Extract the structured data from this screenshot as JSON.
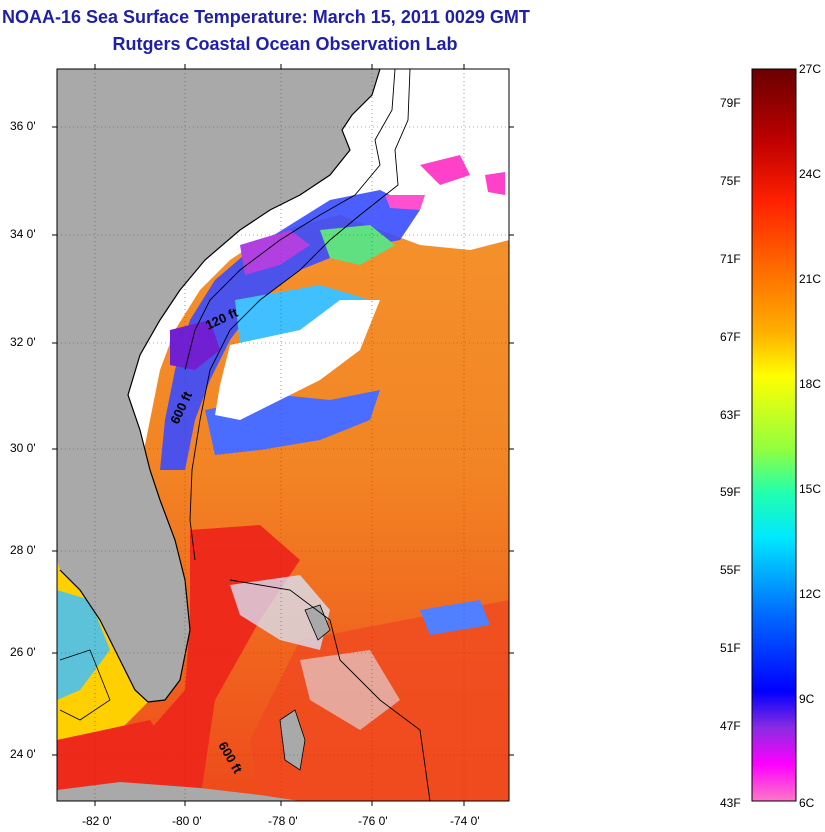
{
  "title": {
    "line1": "NOAA-16 Sea Surface Temperature:  March 15, 2011 0029 GMT",
    "line2": "Rutgers Coastal Ocean Observation Lab"
  },
  "map": {
    "lat_ticks": [
      "36 0'",
      "34 0'",
      "32 0'",
      "30 0'",
      "28 0'",
      "26 0'",
      "24 0'"
    ],
    "lon_ticks": [
      "-82 0'",
      "-80 0'",
      "-78 0'",
      "-76 0'",
      "-74 0'"
    ],
    "isobath_labels": [
      "120 ft",
      "600 ft",
      "600 ft"
    ],
    "colors": {
      "land": "#a9a9a9",
      "cloud": "#ffffff",
      "warm_water": "#f47a1f",
      "hot_water": "#ee2a1a"
    }
  },
  "colorbar": {
    "fahrenheit": [
      "79F",
      "75F",
      "71F",
      "67F",
      "63F",
      "59F",
      "55F",
      "51F",
      "47F",
      "43F"
    ],
    "celsius": [
      "27C",
      "24C",
      "21C",
      "18C",
      "15C",
      "12C",
      "9C",
      "6C"
    ],
    "gradient": [
      "#7a0000",
      "#c00000",
      "#ff1a00",
      "#ff6a00",
      "#ffb000",
      "#ffff00",
      "#a0ff40",
      "#00ffc0",
      "#00c8ff",
      "#0064ff",
      "#0000ff",
      "#8a2be2",
      "#ff00ff",
      "#ff70c8"
    ]
  }
}
